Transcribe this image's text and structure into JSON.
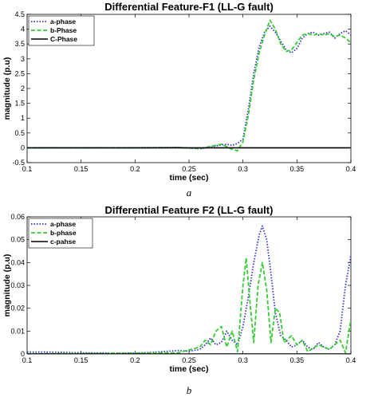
{
  "chart_data": [
    {
      "type": "line",
      "title": "Differential Feature-F1 (LL-G fault)",
      "xlabel": "time (sec)",
      "ylabel": "magnitude (p.u)",
      "caption": "a",
      "xlim": [
        0.1,
        0.4
      ],
      "ylim": [
        -0.5,
        4.5
      ],
      "xticks": [
        "0.1",
        "0.15",
        "0.2",
        "0.25",
        "0.3",
        "0.35",
        "0.4"
      ],
      "yticks": [
        "-0.5",
        "0",
        "0.5",
        "1",
        "1.5",
        "2",
        "2.5",
        "3",
        "3.5",
        "4",
        "4.5"
      ],
      "legend": "top-left",
      "series": [
        {
          "name": "a-phase",
          "color": "#3333cc",
          "style": "dotted",
          "points": [
            [
              0.1,
              0
            ],
            [
              0.2,
              0
            ],
            [
              0.24,
              0.01
            ],
            [
              0.26,
              -0.03
            ],
            [
              0.27,
              0.02
            ],
            [
              0.28,
              0.1
            ],
            [
              0.285,
              0.12
            ],
            [
              0.29,
              0.08
            ],
            [
              0.295,
              0.15
            ],
            [
              0.3,
              0.3
            ],
            [
              0.305,
              1.3
            ],
            [
              0.31,
              2.5
            ],
            [
              0.315,
              3.4
            ],
            [
              0.32,
              3.9
            ],
            [
              0.325,
              4.1
            ],
            [
              0.33,
              3.9
            ],
            [
              0.335,
              3.6
            ],
            [
              0.34,
              3.3
            ],
            [
              0.345,
              3.2
            ],
            [
              0.35,
              3.35
            ],
            [
              0.355,
              3.7
            ],
            [
              0.36,
              3.85
            ],
            [
              0.365,
              3.9
            ],
            [
              0.37,
              3.8
            ],
            [
              0.375,
              3.85
            ],
            [
              0.38,
              3.9
            ],
            [
              0.385,
              3.7
            ],
            [
              0.39,
              3.85
            ],
            [
              0.395,
              3.95
            ],
            [
              0.4,
              3.8
            ]
          ]
        },
        {
          "name": "b-Phase",
          "color": "#33cc33",
          "style": "dashed",
          "points": [
            [
              0.1,
              0
            ],
            [
              0.2,
              0
            ],
            [
              0.24,
              0.01
            ],
            [
              0.26,
              -0.03
            ],
            [
              0.27,
              0.05
            ],
            [
              0.28,
              0.12
            ],
            [
              0.29,
              -0.05
            ],
            [
              0.295,
              -0.1
            ],
            [
              0.3,
              0.2
            ],
            [
              0.305,
              1.1
            ],
            [
              0.31,
              2.3
            ],
            [
              0.315,
              3.2
            ],
            [
              0.32,
              3.8
            ],
            [
              0.325,
              4.3
            ],
            [
              0.33,
              4.0
            ],
            [
              0.335,
              3.5
            ],
            [
              0.34,
              3.25
            ],
            [
              0.345,
              3.3
            ],
            [
              0.35,
              3.55
            ],
            [
              0.355,
              3.8
            ],
            [
              0.36,
              3.85
            ],
            [
              0.365,
              3.8
            ],
            [
              0.37,
              3.85
            ],
            [
              0.375,
              3.8
            ],
            [
              0.38,
              3.85
            ],
            [
              0.385,
              3.75
            ],
            [
              0.39,
              3.8
            ],
            [
              0.395,
              3.7
            ],
            [
              0.4,
              3.55
            ]
          ]
        },
        {
          "name": "C-Phase",
          "color": "#000000",
          "style": "solid",
          "points": [
            [
              0.1,
              0
            ],
            [
              0.4,
              0
            ]
          ]
        }
      ]
    },
    {
      "type": "line",
      "title": "Differential Feature F2 (LL-G fault)",
      "xlabel": "time (sec)",
      "ylabel": "magnitude (p.u)",
      "caption": "b",
      "xlim": [
        0.1,
        0.4
      ],
      "ylim": [
        0,
        0.06
      ],
      "xticks": [
        "0.1",
        "0.15",
        "0.2",
        "0.25",
        "0.3",
        "0.35",
        "0.4"
      ],
      "yticks": [
        "0",
        "0.01",
        "0.02",
        "0.03",
        "0.04",
        "0.05",
        "0.06"
      ],
      "legend": "top-left",
      "series": [
        {
          "name": "a-phase",
          "color": "#3333cc",
          "style": "dotted",
          "points": [
            [
              0.1,
              0.0008
            ],
            [
              0.12,
              0.0008
            ],
            [
              0.15,
              0.0005
            ],
            [
              0.2,
              0.0003
            ],
            [
              0.22,
              0.0008
            ],
            [
              0.24,
              0.0015
            ],
            [
              0.25,
              0.0012
            ],
            [
              0.26,
              0.002
            ],
            [
              0.265,
              0.004
            ],
            [
              0.27,
              0.007
            ],
            [
              0.275,
              0.004
            ],
            [
              0.28,
              0.005
            ],
            [
              0.285,
              0.01
            ],
            [
              0.29,
              0.006
            ],
            [
              0.295,
              0.004
            ],
            [
              0.3,
              0.012
            ],
            [
              0.305,
              0.025
            ],
            [
              0.31,
              0.04
            ],
            [
              0.315,
              0.052
            ],
            [
              0.318,
              0.056
            ],
            [
              0.322,
              0.05
            ],
            [
              0.326,
              0.035
            ],
            [
              0.33,
              0.018
            ],
            [
              0.335,
              0.008
            ],
            [
              0.34,
              0.006
            ],
            [
              0.345,
              0.003
            ],
            [
              0.35,
              0.004
            ],
            [
              0.355,
              0.006
            ],
            [
              0.36,
              0.003
            ],
            [
              0.365,
              0.002
            ],
            [
              0.37,
              0.005
            ],
            [
              0.375,
              0.003
            ],
            [
              0.38,
              0.002
            ],
            [
              0.385,
              0.004
            ],
            [
              0.39,
              0.01
            ],
            [
              0.395,
              0.03
            ],
            [
              0.4,
              0.043
            ]
          ]
        },
        {
          "name": "b-phase",
          "color": "#33cc33",
          "style": "dashed",
          "points": [
            [
              0.1,
              0
            ],
            [
              0.24,
              0.0005
            ],
            [
              0.26,
              0.003
            ],
            [
              0.265,
              0.006
            ],
            [
              0.27,
              0.004
            ],
            [
              0.275,
              0.01
            ],
            [
              0.28,
              0.012
            ],
            [
              0.285,
              0.003
            ],
            [
              0.29,
              0.01
            ],
            [
              0.295,
              0.001
            ],
            [
              0.3,
              0.03
            ],
            [
              0.303,
              0.042
            ],
            [
              0.307,
              0.02
            ],
            [
              0.31,
              0.005
            ],
            [
              0.314,
              0.03
            ],
            [
              0.318,
              0.04
            ],
            [
              0.322,
              0.028
            ],
            [
              0.326,
              0.005
            ],
            [
              0.33,
              0.02
            ],
            [
              0.334,
              0.018
            ],
            [
              0.338,
              0.005
            ],
            [
              0.345,
              0.008
            ],
            [
              0.35,
              0.004
            ],
            [
              0.355,
              0.006
            ],
            [
              0.36,
              0.001
            ],
            [
              0.37,
              0.004
            ],
            [
              0.38,
              0.002
            ],
            [
              0.39,
              0.006
            ],
            [
              0.395,
              0.0005
            ],
            [
              0.4,
              0.015
            ]
          ]
        },
        {
          "name": "c-pahse",
          "color": "#000000",
          "style": "solid",
          "points": [
            [
              0.1,
              0
            ],
            [
              0.4,
              0
            ]
          ]
        }
      ]
    }
  ]
}
